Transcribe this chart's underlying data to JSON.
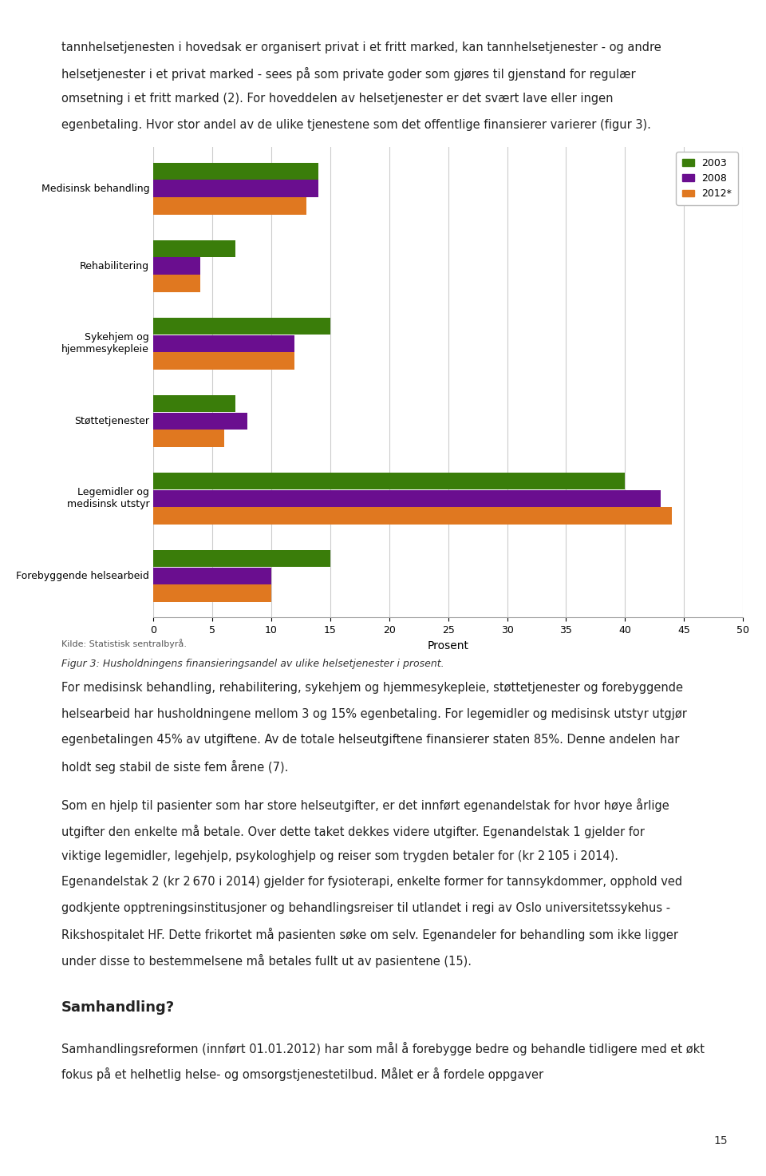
{
  "categories": [
    "Medisinsk behandling",
    "Rehabilitering",
    "Sykehjem og\nhjemmesykepleie",
    "Støttetjenester",
    "Legemidler og\nmedisinsk utstyr",
    "Forebyggende helsearbeid"
  ],
  "series": {
    "2003": [
      14,
      7,
      15,
      7,
      40,
      15
    ],
    "2008": [
      14,
      4,
      12,
      8,
      43,
      10
    ],
    "2012*": [
      13,
      4,
      12,
      6,
      44,
      10
    ]
  },
  "colors": {
    "2003": "#3a7d0a",
    "2008": "#6a0e8f",
    "2012*": "#e07820"
  },
  "xlabel": "Prosent",
  "xlim": [
    0,
    50
  ],
  "xticks": [
    0,
    5,
    10,
    15,
    20,
    25,
    30,
    35,
    40,
    45,
    50
  ],
  "bar_height": 0.22,
  "bar_gap": 0.005,
  "background_color": "#ffffff",
  "grid_color": "#cccccc",
  "legend_order": [
    "2003",
    "2008",
    "2012*"
  ],
  "fig_width": 9.6,
  "fig_height": 14.73,
  "dpi": 100,
  "top_text_lines": [
    "tannhelsetjenesten i hovedsak er organisert privat i et fritt marked, kan tannhelsetjenester - og andre",
    "helsetjenester i et privat marked - sees på som private goder som gjøres til gjenstand for regulær",
    "omsetning i et fritt marked (2). For hoveddelen av helsetjenester er det svært lave eller ingen",
    "egenbetaling. Hvor stor andel av de ulike tjenestene som det offentlige finansierer varierer (figur 3)."
  ],
  "source_text": "Kilde: Statistisk sentralbyrå.",
  "caption": "Figur 3: Husholdningens finansieringsandel av ulike helsetjenester i prosent.",
  "bottom_text_blocks": [
    "For medisinsk behandling, rehabilitering, sykehjem og hjemmesykepleie, støttetjenester og forebyggende helsearbeid har husholdningene mellom 3 og 15% egenbetaling. For legemidler og medisinsk utstyr utgjør egenbetalingen 45% av utgiftene. Av de totale helseutgiftene finansierer staten 85%. Denne andelen har holdt seg stabil de siste fem årene (7).",
    "Som en hjelp til pasienter som har store helseutgifter, er det innført egenandelstak for hvor høye årlige utgifter den enkelte må betale. Over dette taket dekkes videre utgifter. Egenandelstak 1 gjelder for viktige legemidler, legehjelp, psykologhjelp og reiser som trygden betaler for (kr 2 105 i 2014). Egenandelstak 2 (kr 2 670 i 2014) gjelder for fysioterapi, enkelte former for tannsykdommer, opphold ved godkjente opptreningsinstitusjoner og behandlingsreiser til utlandet i regi av Oslo universitetssykehus - Rikshospitalet HF. Dette frikortet må pasienten søke om selv. Egenandeler for behandling som ikke ligger under disse to bestemmelsene må betales fullt ut av pasientene (15)."
  ],
  "samhandling_header": "Samhandling?",
  "samhandling_text": "Samhandlingsreformen (innført 01.01.2012) har som mål å forebygge bedre og behandle tidligere med et økt fokus på et helhetlig helse- og omsorgstjenestetilbud. Målet er å fordele oppgaver",
  "page_number": "15"
}
